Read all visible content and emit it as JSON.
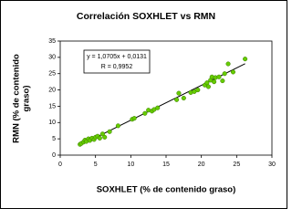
{
  "chart_data": {
    "type": "scatter",
    "title": "Correlación SOXHLET vs RMN",
    "xlabel": "SOXHLET (% de contenido graso)",
    "ylabel": [
      "RMN (% de contenido",
      "graso)"
    ],
    "xlim": [
      0,
      30
    ],
    "xticks": [
      0,
      5,
      10,
      15,
      20,
      25,
      30
    ],
    "ylim": [
      0,
      35
    ],
    "yticks": [
      0,
      5,
      10,
      15,
      20,
      25,
      30,
      35
    ],
    "grid": false,
    "series": [
      {
        "color": "#66cc00",
        "x": [
          2.8,
          3.0,
          3.3,
          3.5,
          3.7,
          4.0,
          4.2,
          4.5,
          4.8,
          5.0,
          5.3,
          5.6,
          6.0,
          6.3,
          7.0,
          8.2,
          10.2,
          10.5,
          12.0,
          12.5,
          13.0,
          13.3,
          13.8,
          16.5,
          16.8,
          17.5,
          18.5,
          19.0,
          19.5,
          20.5,
          20.8,
          21.0,
          21.3,
          21.5,
          21.8,
          22.0,
          22.5,
          23.0,
          23.3,
          23.8,
          24.5,
          26.2
        ],
        "values": [
          3.3,
          3.6,
          4.0,
          4.6,
          4.2,
          5.0,
          4.5,
          5.2,
          4.8,
          5.5,
          5.8,
          5.2,
          6.5,
          5.5,
          7.2,
          9.0,
          11.0,
          11.3,
          12.8,
          13.8,
          13.5,
          14.0,
          14.5,
          17.0,
          19.0,
          17.5,
          19.2,
          19.5,
          20.0,
          21.5,
          22.2,
          21.0,
          23.0,
          24.0,
          22.5,
          23.8,
          24.0,
          22.8,
          25.0,
          28.0,
          25.5,
          29.5
        ]
      }
    ],
    "trendline": {
      "equation": "y = 1,0705x + 0,0131",
      "r": "R = 0,9952",
      "slope": 1.0705,
      "intercept": 0.0131
    }
  }
}
